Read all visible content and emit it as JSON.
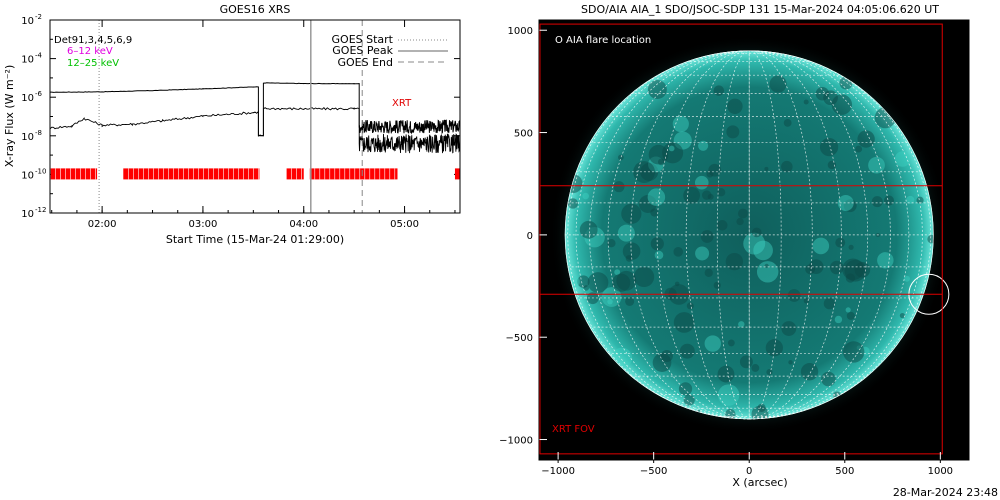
{
  "chart_data": [
    {
      "type": "line",
      "title": "GOES16 XRS",
      "ylabel": "X-ray Flux (W m⁻²)",
      "xlabel": "Start Time (15-Mar-24 01:29:00)",
      "yscale": "log",
      "ylim": [
        1e-12,
        0.01
      ],
      "ytick_exponents": [
        "-2",
        "-4",
        "-6",
        "-8",
        "-10",
        "-12"
      ],
      "xlim_hours": [
        1.483,
        5.55
      ],
      "xticks": [
        {
          "label": "02:00",
          "h": 2.0
        },
        {
          "label": "03:00",
          "h": 3.0
        },
        {
          "label": "04:00",
          "h": 4.0
        },
        {
          "label": "05:00",
          "h": 5.0
        }
      ],
      "info_labels": [
        {
          "text": "Det91,3,4,5,6,9",
          "color": "#000000"
        },
        {
          "text": "6–12 keV",
          "color": "#e000e0"
        },
        {
          "text": "12–25 keV",
          "color": "#00c000"
        }
      ],
      "legend": [
        {
          "label": "GOES Start",
          "style": "dotted"
        },
        {
          "label": "GOES Peak",
          "style": "solid"
        },
        {
          "label": "GOES End",
          "style": "dashed"
        }
      ],
      "legend_position": "top-right",
      "annotation": "XRT",
      "event_lines_hours": {
        "start": 1.97,
        "peak": 4.07,
        "end": 4.58
      },
      "series": [
        {
          "name": "long channel",
          "x": [
            1.483,
            2.0,
            2.5,
            3.0,
            3.5,
            3.55,
            3.55,
            3.6,
            3.6,
            4.0,
            4.5,
            4.55
          ],
          "y": [
            1.8e-06,
            1.9e-06,
            2.2e-06,
            2.7e-06,
            3.4e-06,
            3.5e-06,
            1e-08,
            1e-08,
            5.5e-06,
            5.1e-06,
            5e-06,
            5e-06
          ]
        },
        {
          "name": "short channel",
          "x": [
            1.483,
            1.7,
            1.82,
            2.0,
            2.3,
            2.6,
            3.0,
            3.5,
            3.55,
            3.55,
            3.6,
            3.6,
            4.0,
            4.5,
            4.55
          ],
          "y": [
            2.5e-08,
            3.2e-08,
            8e-08,
            3.5e-08,
            4e-08,
            6e-08,
            1.05e-07,
            1.6e-07,
            1.7e-07,
            1e-08,
            1e-08,
            2.6e-07,
            2.5e-07,
            2.5e-07,
            2.4e-07
          ]
        }
      ],
      "coverage_bars_hours": [
        [
          1.49,
          1.95
        ],
        [
          2.21,
          3.56
        ],
        [
          3.83,
          4.0
        ],
        [
          4.06,
          4.93
        ],
        [
          5.5,
          5.55
        ]
      ]
    },
    {
      "type": "image",
      "title": "SDO/AIA AIA_1 SDO/JSOC-SDP 131 15-Mar-2024 04:05:06.620 UT",
      "xlabel": "X (arcsec)",
      "xlim": [
        -1100,
        1150
      ],
      "ylim": [
        -1100,
        1050
      ],
      "xticks": [
        -1000,
        -500,
        0,
        500,
        1000
      ],
      "yticks": [
        1000,
        500,
        0,
        -500,
        -1000
      ],
      "legend_text": "O AIA flare location",
      "fov_label": "XRT FOV",
      "fov_box": {
        "x": [
          -1095,
          1010
        ],
        "y": [
          -1070,
          1030
        ]
      },
      "inner_box_y": [
        -290,
        240
      ],
      "flare_location": {
        "x": 940,
        "y": -290
      },
      "solar_radius_arcsec": 965,
      "footer": "28-Mar-2024 23:48"
    }
  ]
}
